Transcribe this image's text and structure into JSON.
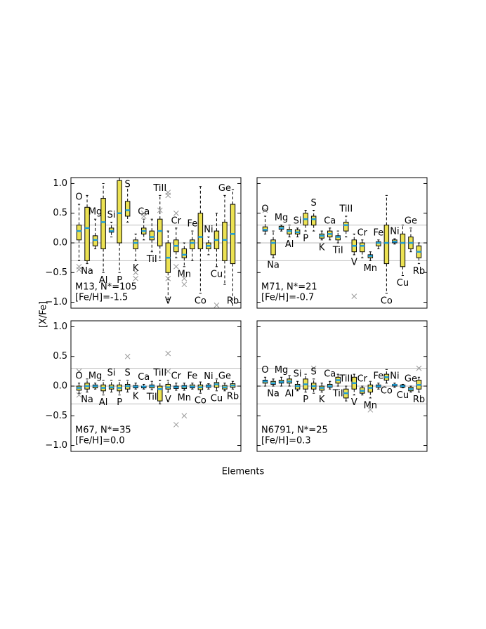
{
  "figure": {
    "ylabel": "[X/Fe]",
    "xlabel": "Elements"
  },
  "chart_data": [
    {
      "type": "box",
      "name": "M13, N*=105",
      "subtitle": "[Fe/H]=-1.5",
      "categories": [
        "O",
        "Na",
        "Mg",
        "Al",
        "Si",
        "P",
        "S",
        "K",
        "Ca",
        "TiI",
        "TiII",
        "V",
        "Cr",
        "Mn",
        "Fe",
        "Co",
        "Ni",
        "Cu",
        "Ge",
        "Rb"
      ],
      "box_color": "#ece253",
      "median_color": "#1f9ed8",
      "flier_color": "#999999",
      "refline_color": "#bbbbbb",
      "xlim": [
        0,
        21
      ],
      "ylim": [
        -1.1,
        1.1
      ],
      "yticks": [
        {
          "value": 1.0,
          "label": "1.0"
        },
        {
          "value": 0.5,
          "label": "0.5"
        },
        {
          "value": 0.0,
          "label": "0.0"
        },
        {
          "value": -0.5,
          "label": "−0.5"
        },
        {
          "value": -1.0,
          "label": "−1.0"
        }
      ],
      "reflines": [
        0.3,
        0,
        -0.3
      ],
      "boxes": [
        {
          "q1": 0.05,
          "median": 0.2,
          "q3": 0.3,
          "whislo": -0.3,
          "whishi": 0.65,
          "fliers": [
            -0.4,
            -0.45
          ]
        },
        {
          "q1": -0.3,
          "median": 0.25,
          "q3": 0.6,
          "whislo": -0.35,
          "whishi": 0.8,
          "fliers": []
        },
        {
          "q1": -0.05,
          "median": 0.05,
          "q3": 0.12,
          "whislo": -0.1,
          "whishi": 0.4,
          "fliers": []
        },
        {
          "q1": -0.1,
          "median": 0.35,
          "q3": 0.75,
          "whislo": -0.5,
          "whishi": 1.0,
          "fliers": []
        },
        {
          "q1": 0.18,
          "median": 0.2,
          "q3": 0.25,
          "whislo": 0.1,
          "whishi": 0.35,
          "fliers": []
        },
        {
          "q1": 0.0,
          "median": 0.5,
          "q3": 1.05,
          "whislo": -0.5,
          "whishi": 1.1,
          "fliers": []
        },
        {
          "q1": 0.45,
          "median": 0.55,
          "q3": 0.7,
          "whislo": 0.35,
          "whishi": 0.95,
          "fliers": []
        },
        {
          "q1": -0.1,
          "median": 0.0,
          "q3": 0.05,
          "whislo": -0.3,
          "whishi": 0.15,
          "fliers": [
            -0.5,
            -0.6
          ]
        },
        {
          "q1": 0.15,
          "median": 0.2,
          "q3": 0.25,
          "whislo": 0.05,
          "whishi": 0.4,
          "fliers": [
            0.45,
            0.5
          ]
        },
        {
          "q1": 0.05,
          "median": 0.1,
          "q3": 0.2,
          "whislo": -0.15,
          "whishi": 0.4,
          "fliers": []
        },
        {
          "q1": -0.05,
          "median": 0.2,
          "q3": 0.4,
          "whislo": -0.3,
          "whishi": 0.8,
          "fliers": [
            0.55
          ]
        },
        {
          "q1": -0.5,
          "median": -0.25,
          "q3": 0.0,
          "whislo": -0.95,
          "whishi": 0.2,
          "fliers": [
            0.8,
            0.85,
            -0.6
          ]
        },
        {
          "q1": -0.15,
          "median": -0.05,
          "q3": 0.05,
          "whislo": -0.25,
          "whishi": 0.25,
          "fliers": [
            0.5,
            -0.4
          ]
        },
        {
          "q1": -0.25,
          "median": -0.2,
          "q3": -0.1,
          "whislo": -0.4,
          "whishi": 0.0,
          "fliers": [
            -0.6,
            -0.7
          ]
        },
        {
          "q1": -0.1,
          "median": 0.0,
          "q3": 0.05,
          "whislo": -0.3,
          "whishi": 0.2,
          "fliers": []
        },
        {
          "q1": -0.1,
          "median": 0.1,
          "q3": 0.5,
          "whislo": -0.85,
          "whishi": 0.95,
          "fliers": []
        },
        {
          "q1": -0.1,
          "median": -0.05,
          "q3": 0.0,
          "whislo": -0.2,
          "whishi": 0.1,
          "fliers": []
        },
        {
          "q1": -0.1,
          "median": 0.05,
          "q3": 0.2,
          "whislo": -0.4,
          "whishi": 0.5,
          "fliers": [
            -1.05
          ]
        },
        {
          "q1": -0.3,
          "median": 0.05,
          "q3": 0.35,
          "whislo": -0.7,
          "whishi": 0.8,
          "fliers": []
        },
        {
          "q1": -0.35,
          "median": 0.15,
          "q3": 0.65,
          "whislo": -1.1,
          "whishi": 0.9,
          "fliers": []
        }
      ]
    },
    {
      "type": "box",
      "name": "M71, N*=21",
      "subtitle": "[Fe/H]=-0.7",
      "categories": [
        "O",
        "Na",
        "Mg",
        "Al",
        "Si",
        "P",
        "S",
        "K",
        "Ca",
        "TiI",
        "TiII",
        "V",
        "Cr",
        "Mn",
        "Fe",
        "Co",
        "Ni",
        "Cu",
        "Ge",
        "Rb"
      ],
      "box_color": "#ece253",
      "median_color": "#1f9ed8",
      "flier_color": "#999999",
      "refline_color": "#bbbbbb",
      "xlim": [
        0,
        21
      ],
      "ylim": [
        -1.1,
        1.1
      ],
      "yticks": [
        1.0,
        0.5,
        0.0,
        -0.5,
        -1.0
      ],
      "reflines": [
        0.3,
        0,
        -0.3
      ],
      "boxes": [
        {
          "q1": 0.2,
          "median": 0.22,
          "q3": 0.27,
          "whislo": 0.15,
          "whishi": 0.45,
          "fliers": [
            0.55
          ]
        },
        {
          "q1": -0.2,
          "median": 0.0,
          "q3": 0.05,
          "whislo": -0.25,
          "whishi": 0.2,
          "fliers": []
        },
        {
          "q1": 0.23,
          "median": 0.25,
          "q3": 0.28,
          "whislo": 0.2,
          "whishi": 0.3,
          "fliers": []
        },
        {
          "q1": 0.15,
          "median": 0.2,
          "q3": 0.23,
          "whislo": 0.1,
          "whishi": 0.3,
          "fliers": []
        },
        {
          "q1": 0.15,
          "median": 0.18,
          "q3": 0.22,
          "whislo": 0.1,
          "whishi": 0.25,
          "fliers": []
        },
        {
          "q1": 0.3,
          "median": 0.4,
          "q3": 0.5,
          "whislo": 0.2,
          "whishi": 0.55,
          "fliers": []
        },
        {
          "q1": 0.3,
          "median": 0.4,
          "q3": 0.45,
          "whislo": 0.2,
          "whishi": 0.55,
          "fliers": []
        },
        {
          "q1": 0.08,
          "median": 0.12,
          "q3": 0.15,
          "whislo": 0.05,
          "whishi": 0.2,
          "fliers": []
        },
        {
          "q1": 0.1,
          "median": 0.15,
          "q3": 0.2,
          "whislo": 0.05,
          "whishi": 0.25,
          "fliers": []
        },
        {
          "q1": 0.05,
          "median": 0.1,
          "q3": 0.12,
          "whislo": 0.0,
          "whishi": 0.2,
          "fliers": []
        },
        {
          "q1": 0.2,
          "median": 0.3,
          "q3": 0.35,
          "whislo": 0.1,
          "whishi": 0.45,
          "fliers": []
        },
        {
          "q1": -0.15,
          "median": -0.05,
          "q3": 0.05,
          "whislo": -0.2,
          "whishi": 0.15,
          "fliers": [
            -0.9
          ]
        },
        {
          "q1": -0.15,
          "median": -0.05,
          "q3": 0.0,
          "whislo": -0.25,
          "whishi": 0.05,
          "fliers": []
        },
        {
          "q1": -0.25,
          "median": -0.22,
          "q3": -0.2,
          "whislo": -0.3,
          "whishi": -0.15,
          "fliers": []
        },
        {
          "q1": -0.05,
          "median": 0.0,
          "q3": 0.02,
          "whislo": -0.1,
          "whishi": 0.05,
          "fliers": []
        },
        {
          "q1": -0.35,
          "median": 0.0,
          "q3": 0.3,
          "whislo": -0.85,
          "whishi": 0.8,
          "fliers": []
        },
        {
          "q1": 0.0,
          "median": 0.02,
          "q3": 0.05,
          "whislo": -0.02,
          "whishi": 0.07,
          "fliers": []
        },
        {
          "q1": -0.4,
          "median": 0.0,
          "q3": 0.15,
          "whislo": -0.55,
          "whishi": 0.3,
          "fliers": []
        },
        {
          "q1": -0.1,
          "median": 0.0,
          "q3": 0.1,
          "whislo": -0.15,
          "whishi": 0.25,
          "fliers": []
        },
        {
          "q1": -0.25,
          "median": -0.15,
          "q3": -0.05,
          "whislo": -0.35,
          "whishi": 0.0,
          "fliers": []
        }
      ]
    },
    {
      "type": "box",
      "name": "M67, N*=35",
      "subtitle": "[Fe/H]=0.0",
      "categories": [
        "O",
        "Na",
        "Mg",
        "Al",
        "Si",
        "P",
        "S",
        "K",
        "Ca",
        "TiI",
        "TiII",
        "V",
        "Cr",
        "Mn",
        "Fe",
        "Co",
        "Ni",
        "Cu",
        "Ge",
        "Rb"
      ],
      "box_color": "#ece253",
      "median_color": "#1f9ed8",
      "flier_color": "#999999",
      "refline_color": "#bbbbbb",
      "xlim": [
        0,
        21
      ],
      "ylim": [
        -1.1,
        1.1
      ],
      "yticks": [
        {
          "value": 1.0,
          "label": "1.0"
        },
        {
          "value": 0.5,
          "label": "0.5"
        },
        {
          "value": 0.0,
          "label": "0.0"
        },
        {
          "value": -0.5,
          "label": "−0.5"
        },
        {
          "value": -1.0,
          "label": "−1.0"
        }
      ],
      "reflines": [
        0.3,
        0,
        -0.3
      ],
      "boxes": [
        {
          "q1": -0.07,
          "median": -0.03,
          "q3": 0.0,
          "whislo": -0.12,
          "whishi": 0.05,
          "fliers": [
            0.25,
            -0.15
          ]
        },
        {
          "q1": -0.05,
          "median": 0.0,
          "q3": 0.05,
          "whislo": -0.1,
          "whishi": 0.12,
          "fliers": []
        },
        {
          "q1": -0.03,
          "median": 0.0,
          "q3": 0.02,
          "whislo": -0.05,
          "whishi": 0.05,
          "fliers": []
        },
        {
          "q1": -0.08,
          "median": -0.03,
          "q3": 0.02,
          "whislo": -0.15,
          "whishi": 0.1,
          "fliers": []
        },
        {
          "q1": -0.05,
          "median": -0.02,
          "q3": 0.02,
          "whislo": -0.1,
          "whishi": 0.1,
          "fliers": []
        },
        {
          "q1": -0.08,
          "median": -0.03,
          "q3": 0.02,
          "whislo": -0.15,
          "whishi": 0.1,
          "fliers": []
        },
        {
          "q1": -0.05,
          "median": 0.0,
          "q3": 0.03,
          "whislo": -0.1,
          "whishi": 0.1,
          "fliers": [
            0.5
          ]
        },
        {
          "q1": -0.03,
          "median": -0.01,
          "q3": 0.01,
          "whislo": -0.05,
          "whishi": 0.05,
          "fliers": []
        },
        {
          "q1": -0.03,
          "median": -0.01,
          "q3": 0.0,
          "whislo": -0.05,
          "whishi": 0.03,
          "fliers": []
        },
        {
          "q1": -0.03,
          "median": 0.0,
          "q3": 0.02,
          "whislo": -0.06,
          "whishi": 0.08,
          "fliers": []
        },
        {
          "q1": -0.25,
          "median": -0.05,
          "q3": 0.0,
          "whislo": -0.3,
          "whishi": 0.1,
          "fliers": []
        },
        {
          "q1": -0.05,
          "median": -0.02,
          "q3": 0.03,
          "whislo": -0.1,
          "whishi": 0.1,
          "fliers": [
            0.55,
            0.25
          ]
        },
        {
          "q1": -0.04,
          "median": -0.02,
          "q3": 0.0,
          "whislo": -0.07,
          "whishi": 0.05,
          "fliers": [
            -0.65
          ]
        },
        {
          "q1": -0.04,
          "median": -0.01,
          "q3": 0.01,
          "whislo": -0.07,
          "whishi": 0.05,
          "fliers": [
            -0.5
          ]
        },
        {
          "q1": -0.03,
          "median": -0.01,
          "q3": 0.02,
          "whislo": -0.05,
          "whishi": 0.05,
          "fliers": []
        },
        {
          "q1": -0.06,
          "median": -0.02,
          "q3": 0.02,
          "whislo": -0.12,
          "whishi": 0.07,
          "fliers": []
        },
        {
          "q1": -0.02,
          "median": 0.0,
          "q3": 0.02,
          "whislo": -0.05,
          "whishi": 0.04,
          "fliers": []
        },
        {
          "q1": -0.02,
          "median": 0.03,
          "q3": 0.06,
          "whislo": -0.08,
          "whishi": 0.12,
          "fliers": []
        },
        {
          "q1": -0.05,
          "median": -0.02,
          "q3": 0.01,
          "whislo": -0.08,
          "whishi": 0.05,
          "fliers": []
        },
        {
          "q1": -0.02,
          "median": 0.01,
          "q3": 0.04,
          "whislo": -0.05,
          "whishi": 0.08,
          "fliers": []
        }
      ]
    },
    {
      "type": "box",
      "name": "N6791, N*=25",
      "subtitle": "[Fe/H]=0.3",
      "categories": [
        "O",
        "Na",
        "Mg",
        "Al",
        "Si",
        "P",
        "S",
        "K",
        "Ca",
        "TiI",
        "TiII",
        "V",
        "Cr",
        "Mn",
        "Fe",
        "Co",
        "Ni",
        "Cu",
        "Ge",
        "Rb"
      ],
      "box_color": "#ece253",
      "median_color": "#1f9ed8",
      "flier_color": "#999999",
      "refline_color": "#bbbbbb",
      "xlim": [
        0,
        21
      ],
      "ylim": [
        -1.1,
        1.1
      ],
      "yticks": [
        1.0,
        0.5,
        0.0,
        -0.5,
        -1.0
      ],
      "reflines": [
        0.3,
        0,
        -0.3
      ],
      "boxes": [
        {
          "q1": 0.05,
          "median": 0.08,
          "q3": 0.1,
          "whislo": 0.0,
          "whishi": 0.15,
          "fliers": []
        },
        {
          "q1": 0.03,
          "median": 0.05,
          "q3": 0.08,
          "whislo": 0.0,
          "whishi": 0.12,
          "fliers": []
        },
        {
          "q1": 0.05,
          "median": 0.07,
          "q3": 0.1,
          "whislo": 0.0,
          "whishi": 0.15,
          "fliers": []
        },
        {
          "q1": 0.05,
          "median": 0.08,
          "q3": 0.12,
          "whislo": 0.0,
          "whishi": 0.18,
          "fliers": []
        },
        {
          "q1": -0.05,
          "median": 0.0,
          "q3": 0.03,
          "whislo": -0.08,
          "whishi": 0.08,
          "fliers": []
        },
        {
          "q1": -0.05,
          "median": 0.03,
          "q3": 0.12,
          "whislo": -0.1,
          "whishi": 0.2,
          "fliers": []
        },
        {
          "q1": -0.05,
          "median": 0.0,
          "q3": 0.05,
          "whislo": -0.12,
          "whishi": 0.12,
          "fliers": [
            0.3
          ]
        },
        {
          "q1": -0.07,
          "median": -0.03,
          "q3": 0.0,
          "whislo": -0.1,
          "whishi": 0.05,
          "fliers": []
        },
        {
          "q1": -0.02,
          "median": 0.0,
          "q3": 0.03,
          "whislo": -0.05,
          "whishi": 0.08,
          "fliers": []
        },
        {
          "q1": 0.05,
          "median": 0.1,
          "q3": 0.15,
          "whislo": 0.0,
          "whishi": 0.2,
          "fliers": []
        },
        {
          "q1": -0.2,
          "median": -0.12,
          "q3": -0.05,
          "whislo": -0.25,
          "whishi": 0.0,
          "fliers": []
        },
        {
          "q1": -0.05,
          "median": 0.05,
          "q3": 0.15,
          "whislo": -0.15,
          "whishi": 0.2,
          "fliers": []
        },
        {
          "q1": -0.12,
          "median": -0.08,
          "q3": -0.03,
          "whislo": -0.15,
          "whishi": 0.0,
          "fliers": []
        },
        {
          "q1": -0.1,
          "median": -0.03,
          "q3": 0.02,
          "whislo": -0.2,
          "whishi": 0.08,
          "fliers": [
            -0.4
          ]
        },
        {
          "q1": -0.02,
          "median": 0.0,
          "q3": 0.02,
          "whislo": -0.05,
          "whishi": 0.05,
          "fliers": []
        },
        {
          "q1": 0.1,
          "median": 0.15,
          "q3": 0.2,
          "whislo": 0.05,
          "whishi": 0.28,
          "fliers": []
        },
        {
          "q1": 0.0,
          "median": 0.02,
          "q3": 0.03,
          "whislo": -0.02,
          "whishi": 0.05,
          "fliers": []
        },
        {
          "q1": -0.02,
          "median": 0.0,
          "q3": 0.02,
          "whislo": -0.03,
          "whishi": 0.03,
          "fliers": []
        },
        {
          "q1": -0.08,
          "median": -0.05,
          "q3": -0.02,
          "whislo": -0.1,
          "whishi": 0.0,
          "fliers": []
        },
        {
          "q1": -0.05,
          "median": 0.02,
          "q3": 0.1,
          "whislo": -0.1,
          "whishi": 0.15,
          "fliers": [
            0.3
          ]
        }
      ]
    }
  ]
}
